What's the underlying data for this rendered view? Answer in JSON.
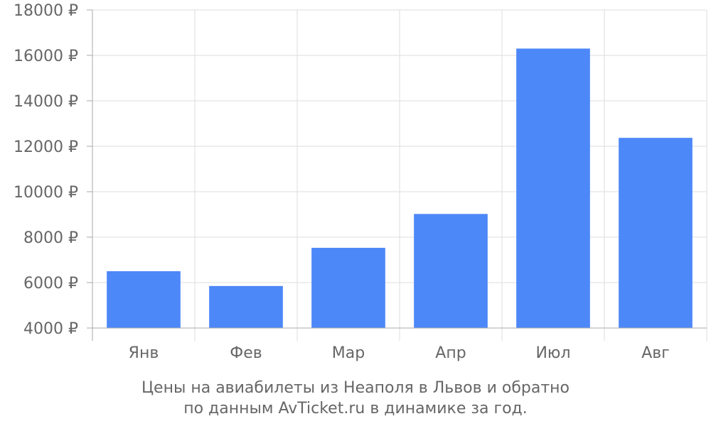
{
  "chart_data": {
    "type": "bar",
    "categories": [
      "Янв",
      "Фев",
      "Мар",
      "Апр",
      "Июл",
      "Авг"
    ],
    "values": [
      6500,
      5850,
      7530,
      9020,
      16300,
      12370
    ],
    "ylim": [
      4000,
      18000
    ],
    "yticks": [
      4000,
      6000,
      8000,
      10000,
      12000,
      14000,
      16000,
      18000
    ],
    "ytick_suffix": " ₽",
    "grid": true,
    "bar_color": "#4d88f8",
    "grid_color": "#dddddd",
    "axis_color": "#aaaaaa",
    "text_color": "#666666"
  },
  "caption": {
    "line1": "Цены на авиабилеты из Неаполя в Львов и обратно",
    "line2": "по данным AvTicket.ru в динамике за год."
  }
}
